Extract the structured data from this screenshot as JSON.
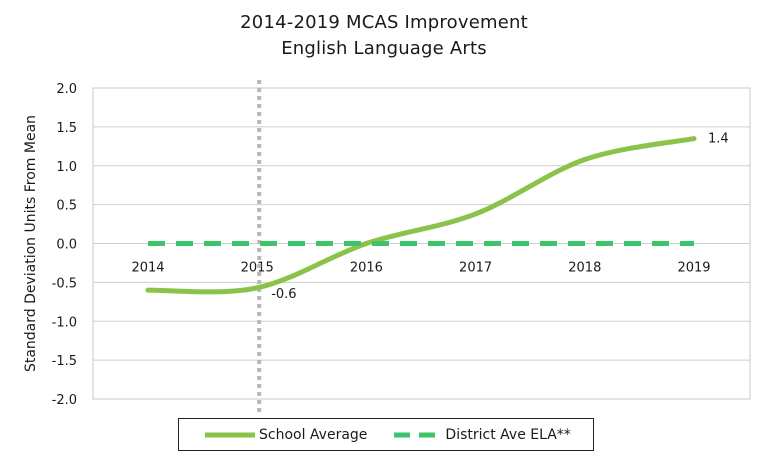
{
  "chart_data": {
    "type": "line",
    "title_lines": [
      "2014-2019 MCAS Improvement",
      "English Language Arts"
    ],
    "ylabel": "Standard Deviation Units From Mean",
    "xlabel": "",
    "ylim": [
      -2.0,
      2.0
    ],
    "yticks": [
      "2.0",
      "1.5",
      "1.0",
      "0.5",
      "0.0",
      "-0.5",
      "-1.0",
      "-1.5",
      "-2.0"
    ],
    "categories": [
      "2014",
      "2015",
      "2016",
      "2017",
      "2018",
      "2019"
    ],
    "grid": "horizontal",
    "vertical_reference_line": {
      "at": "2015",
      "style": "dotted",
      "color": "#b8b8b8"
    },
    "series": [
      {
        "name": "School Average",
        "color": "#8bc34a",
        "style": "solid",
        "values": [
          -0.6,
          -0.57,
          0.0,
          0.38,
          1.08,
          1.35
        ]
      },
      {
        "name": "District Ave ELA**",
        "color": "#3cc46a",
        "style": "dashed",
        "values": [
          0.0,
          0.0,
          0.0,
          0.0,
          0.0,
          0.0
        ]
      }
    ],
    "annotations": [
      {
        "text": "-0.6",
        "category": "2015",
        "series": "School Average"
      },
      {
        "text": "1.4",
        "category": "2019",
        "series": "School Average"
      }
    ],
    "legend": {
      "position": "bottom"
    }
  }
}
